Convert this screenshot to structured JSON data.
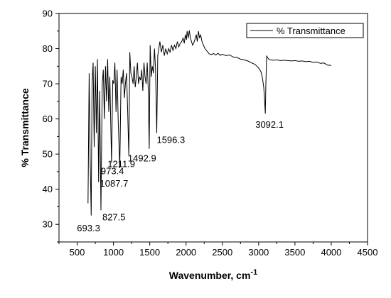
{
  "chart_data": {
    "type": "line",
    "xlabel": "Wavenumber, cm",
    "xlabel_sup": "-1",
    "ylabel": "% Transmittance",
    "xlim": [
      250,
      4500
    ],
    "ylim": [
      25,
      90
    ],
    "x_ticks": [
      500,
      1000,
      1500,
      2000,
      2500,
      3000,
      3500,
      4000,
      4500
    ],
    "y_ticks": [
      30,
      40,
      50,
      60,
      70,
      80,
      90
    ],
    "grid": false,
    "legend_position": "top-right",
    "series": [
      {
        "name": "% Transmittance",
        "color": "#000000",
        "points": [
          [
            650,
            36
          ],
          [
            665,
            73
          ],
          [
            680,
            48
          ],
          [
            693.3,
            32.5
          ],
          [
            705,
            70
          ],
          [
            720,
            76
          ],
          [
            735,
            52
          ],
          [
            750,
            75
          ],
          [
            765,
            56
          ],
          [
            780,
            77
          ],
          [
            795,
            42
          ],
          [
            810,
            68
          ],
          [
            827.5,
            34
          ],
          [
            845,
            70
          ],
          [
            860,
            74
          ],
          [
            875,
            60
          ],
          [
            890,
            75
          ],
          [
            905,
            65
          ],
          [
            920,
            77
          ],
          [
            935,
            62
          ],
          [
            950,
            72
          ],
          [
            973.4,
            47.5
          ],
          [
            990,
            71
          ],
          [
            1005,
            70
          ],
          [
            1020,
            76
          ],
          [
            1035,
            62
          ],
          [
            1050,
            74
          ],
          [
            1065,
            60
          ],
          [
            1087.7,
            46
          ],
          [
            1105,
            72
          ],
          [
            1120,
            70
          ],
          [
            1135,
            74
          ],
          [
            1150,
            66
          ],
          [
            1165,
            70
          ],
          [
            1180,
            73
          ],
          [
            1195,
            63
          ],
          [
            1211.9,
            49.5
          ],
          [
            1225,
            79
          ],
          [
            1240,
            73
          ],
          [
            1255,
            72
          ],
          [
            1270,
            70
          ],
          [
            1285,
            75
          ],
          [
            1300,
            69
          ],
          [
            1315,
            72
          ],
          [
            1330,
            76
          ],
          [
            1345,
            70
          ],
          [
            1360,
            72
          ],
          [
            1375,
            71
          ],
          [
            1390,
            74
          ],
          [
            1405,
            68
          ],
          [
            1420,
            76
          ],
          [
            1435,
            72
          ],
          [
            1450,
            70
          ],
          [
            1465,
            76
          ],
          [
            1480,
            68
          ],
          [
            1492.9,
            51.5
          ],
          [
            1505,
            81
          ],
          [
            1520,
            72
          ],
          [
            1535,
            75
          ],
          [
            1550,
            73
          ],
          [
            1565,
            80
          ],
          [
            1580,
            74
          ],
          [
            1596.3,
            56
          ],
          [
            1610,
            78
          ],
          [
            1625,
            80
          ],
          [
            1640,
            82
          ],
          [
            1660,
            79
          ],
          [
            1680,
            81
          ],
          [
            1700,
            78
          ],
          [
            1720,
            80
          ],
          [
            1740,
            78.5
          ],
          [
            1760,
            80
          ],
          [
            1780,
            79
          ],
          [
            1800,
            81
          ],
          [
            1820,
            79.5
          ],
          [
            1840,
            81
          ],
          [
            1860,
            80
          ],
          [
            1880,
            82
          ],
          [
            1900,
            80.5
          ],
          [
            1920,
            81.5
          ],
          [
            1940,
            82
          ],
          [
            1960,
            83
          ],
          [
            1975,
            81.5
          ],
          [
            1990,
            84
          ],
          [
            2005,
            82.5
          ],
          [
            2015,
            85
          ],
          [
            2030,
            83
          ],
          [
            2045,
            85.2
          ],
          [
            2060,
            83
          ],
          [
            2075,
            82
          ],
          [
            2090,
            81
          ],
          [
            2105,
            81.5
          ],
          [
            2120,
            82.5
          ],
          [
            2140,
            84
          ],
          [
            2155,
            82
          ],
          [
            2170,
            85
          ],
          [
            2185,
            83
          ],
          [
            2200,
            84
          ],
          [
            2220,
            82
          ],
          [
            2240,
            81
          ],
          [
            2260,
            80
          ],
          [
            2280,
            79.5
          ],
          [
            2300,
            79
          ],
          [
            2320,
            78.5
          ],
          [
            2350,
            78.3
          ],
          [
            2380,
            78.6
          ],
          [
            2410,
            78.2
          ],
          [
            2440,
            78.7
          ],
          [
            2470,
            78.1
          ],
          [
            2500,
            78.4
          ],
          [
            2550,
            78
          ],
          [
            2600,
            78.2
          ],
          [
            2650,
            77.6
          ],
          [
            2700,
            77.5
          ],
          [
            2750,
            77
          ],
          [
            2800,
            76.8
          ],
          [
            2850,
            76.5
          ],
          [
            2900,
            76
          ],
          [
            2950,
            75.5
          ],
          [
            3000,
            74.5
          ],
          [
            3030,
            73.5
          ],
          [
            3050,
            72
          ],
          [
            3070,
            69
          ],
          [
            3080,
            66
          ],
          [
            3092.1,
            61.5
          ],
          [
            3100,
            70
          ],
          [
            3110,
            78
          ],
          [
            3120,
            77.5
          ],
          [
            3140,
            77
          ],
          [
            3160,
            76.8
          ],
          [
            3200,
            76.7
          ],
          [
            3250,
            76.8
          ],
          [
            3300,
            76.6
          ],
          [
            3350,
            76.7
          ],
          [
            3400,
            76.6
          ],
          [
            3450,
            76.5
          ],
          [
            3500,
            76.6
          ],
          [
            3550,
            76.4
          ],
          [
            3600,
            76.5
          ],
          [
            3650,
            76.3
          ],
          [
            3700,
            76.4
          ],
          [
            3750,
            76.1
          ],
          [
            3800,
            76.2
          ],
          [
            3850,
            75.8
          ],
          [
            3900,
            75.9
          ],
          [
            3950,
            75.3
          ],
          [
            4000,
            75.2
          ]
        ]
      }
    ],
    "annotations": [
      {
        "label": "693.3",
        "x": 693.3,
        "y": 32.5
      },
      {
        "label": "827.5",
        "x": 827.5,
        "y": 34
      },
      {
        "label": "973.4",
        "x": 973.4,
        "y": 47.5
      },
      {
        "label": "1087.7",
        "x": 1087.7,
        "y": 46
      },
      {
        "label": "1211.9",
        "x": 1211.9,
        "y": 49.5
      },
      {
        "label": "1492.9",
        "x": 1492.9,
        "y": 51.5
      },
      {
        "label": "1596.3",
        "x": 1596.3,
        "y": 56
      },
      {
        "label": "3092.1",
        "x": 3092.1,
        "y": 61.5
      }
    ]
  }
}
